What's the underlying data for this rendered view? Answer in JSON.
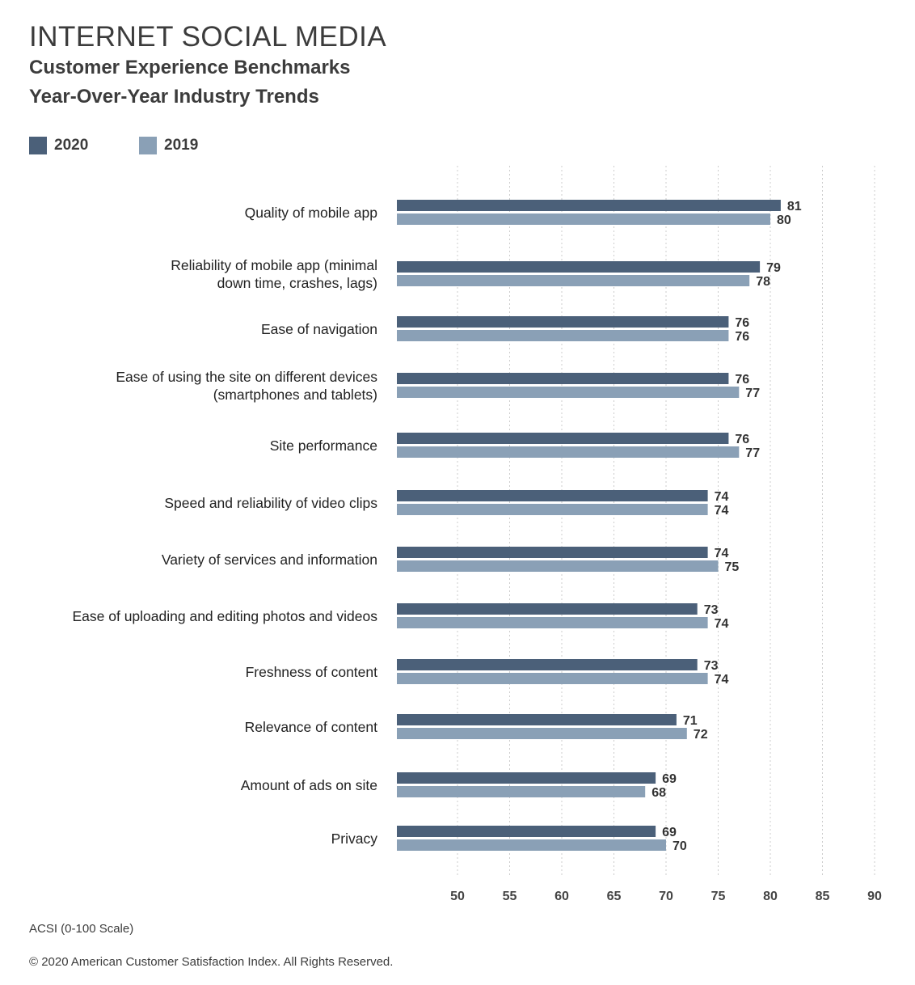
{
  "header": {
    "title": "INTERNET SOCIAL MEDIA",
    "subtitle_line1": "Customer Experience Benchmarks",
    "subtitle_line2": "Year-Over-Year Industry Trends"
  },
  "footer": {
    "scale_note": "ACSI (0-100 Scale)",
    "copyright": "© 2020 American Customer Satisfaction Index. All Rights Reserved."
  },
  "colors": {
    "series_2020": "#4b6079",
    "series_2019": "#8aa0b6",
    "grid": "#cccccc",
    "text": "#333333"
  },
  "chart_data": {
    "type": "bar",
    "orientation": "horizontal",
    "title": "INTERNET SOCIAL MEDIA",
    "subtitle": "Customer Experience Benchmarks Year-Over-Year Industry Trends",
    "xlabel": "ACSI (0-100 Scale)",
    "ylabel": "",
    "xlim": [
      44,
      90
    ],
    "xticks": [
      50,
      55,
      60,
      65,
      70,
      75,
      80,
      85,
      90
    ],
    "grid": "vertical dotted",
    "legend_position": "top-left",
    "categories": [
      [
        "Quality of mobile app"
      ],
      [
        "Reliability of mobile app (minimal",
        "down time, crashes, lags)"
      ],
      [
        "Ease of navigation"
      ],
      [
        "Ease of using the site on different devices",
        "(smartphones and tablets)"
      ],
      [
        "Site performance"
      ],
      [
        "Speed and reliability of video clips"
      ],
      [
        "Variety of services and information"
      ],
      [
        "Ease of uploading and editing photos and videos"
      ],
      [
        "Freshness of content"
      ],
      [
        "Relevance of content"
      ],
      [
        "Amount of ads on site"
      ],
      [
        "Privacy"
      ]
    ],
    "series": [
      {
        "name": "2020",
        "color": "#4b6079",
        "values": [
          81,
          79,
          76,
          76,
          76,
          74,
          74,
          73,
          73,
          71,
          69,
          69
        ]
      },
      {
        "name": "2019",
        "color": "#8aa0b6",
        "values": [
          80,
          78,
          76,
          77,
          77,
          74,
          75,
          74,
          74,
          72,
          68,
          70
        ]
      }
    ]
  }
}
